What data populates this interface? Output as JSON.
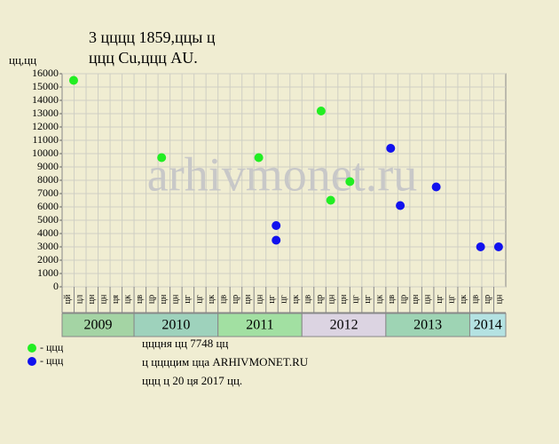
{
  "chart_data": {
    "type": "scatter",
    "title": [
      "3 цццц 1859,ццы ц",
      "ццц Cu,ццц AU."
    ],
    "y_label": "цц,цц",
    "watermark": "arhivmonet.ru",
    "years": [
      {
        "label": "2009",
        "color": "#a4d4a4",
        "months": [
          "цй",
          "цл",
          "цн",
          "цн",
          "ця",
          "цк"
        ]
      },
      {
        "label": "2010",
        "color": "#9ed2bc",
        "months": [
          "цв",
          "цр",
          "цн",
          "цн",
          "цг",
          "цг",
          "цк"
        ]
      },
      {
        "label": "2011",
        "color": "#a2e0a2",
        "months": [
          "цв",
          "цр",
          "цн",
          "цн",
          "цг",
          "цг",
          "цк"
        ]
      },
      {
        "label": "2012",
        "color": "#dcd4e2",
        "months": [
          "цв",
          "цр",
          "цн",
          "цн",
          "цг",
          "цг",
          "цк"
        ]
      },
      {
        "label": "2013",
        "color": "#9ed4b4",
        "months": [
          "цв",
          "цр",
          "цн",
          "цн",
          "цг",
          "цг",
          "цк"
        ]
      },
      {
        "label": "2014",
        "color": "#b4e2e2",
        "months": [
          "цв",
          "цр",
          "цн"
        ]
      }
    ],
    "xlim": [
      0,
      37
    ],
    "ylim": [
      0,
      16000
    ],
    "yticks": [
      0,
      1000,
      2000,
      3000,
      4000,
      5000,
      6000,
      7000,
      8000,
      9000,
      10000,
      11000,
      12000,
      13000,
      14000,
      15000,
      16000
    ],
    "grid": true,
    "series": [
      {
        "name": "- ццц",
        "color": "#22ee22",
        "x": [
          0.96,
          8.3,
          16.4,
          21.6,
          22.4,
          24.0
        ],
        "values": [
          15500,
          9700,
          9700,
          13200,
          6500,
          7900
        ]
      },
      {
        "name": "- ццц",
        "color": "#1111ee",
        "x": [
          17.85,
          17.85,
          27.4,
          28.2,
          31.2,
          34.9,
          36.4
        ],
        "values": [
          4600,
          3500,
          10400,
          6100,
          7500,
          3000,
          3000
        ]
      }
    ],
    "notes": [
      "цццня цц 7748 цц",
      "ц ццццим цца ARHIVMONET.RU",
      "ццц ц 20 ця 2017 цц."
    ]
  }
}
